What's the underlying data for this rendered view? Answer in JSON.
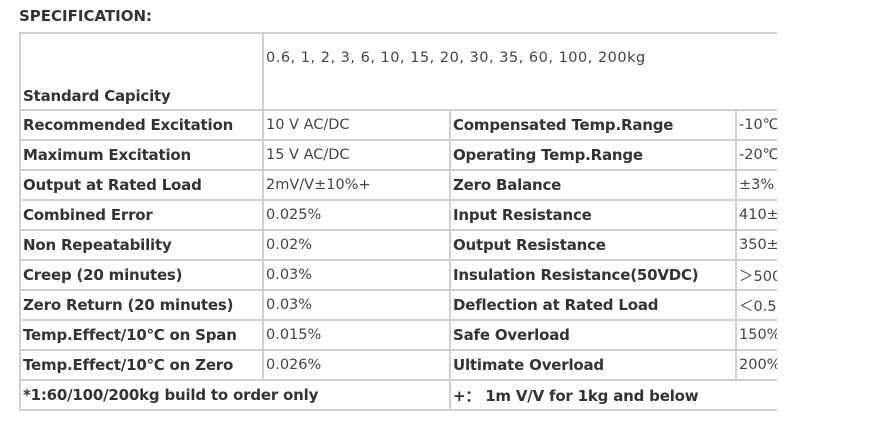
{
  "title": "SPECIFICATION:",
  "capacity": {
    "label": "Standard Capicity",
    "value": "0.6, 1, 2, 3, 6, 10, 15, 20, 30, 35, 60, 100, 200kg"
  },
  "rows": [
    {
      "l1": "Recommended Excitation",
      "v1": "10 V AC/DC",
      "l2": "Compensated Temp.Range",
      "v2": "-10℃"
    },
    {
      "l1": "Maximum Excitation",
      "v1": "15 V AC/DC",
      "l2": "Operating Temp.Range",
      "v2": "-20℃"
    },
    {
      "l1": "Output at Rated Load",
      "v1": "2mV/V±10%+",
      "l2": "Zero Balance",
      "v2": "±3%"
    },
    {
      "l1": "Combined Error",
      "v1": "0.025%",
      "l2": "Input Resistance",
      "v2": "410±"
    },
    {
      "l1": "Non Repeatability",
      "v1": "0.02%",
      "l2": "Output Resistance",
      "v2": "350±"
    },
    {
      "l1": "Creep (20 minutes)",
      "v1": "0.03%",
      "l2": "Insulation Resistance(50VDC)",
      "v2": "＞500"
    },
    {
      "l1": "Zero Return (20 minutes)",
      "v1": "0.03%",
      "l2": "Deflection at Rated Load",
      "v2": "＜0.5"
    },
    {
      "l1": "Temp.Effect/10℃ on Span",
      "v1": "0.015%",
      "l2": "Safe Overload",
      "v2": "150%"
    },
    {
      "l1": "Temp.Effect/10℃ on Zero",
      "v1": "0.026%",
      "l2": "Ultimate Overload",
      "v2": "200%"
    }
  ],
  "footer": {
    "left": "*1:60/100/200kg build to order only",
    "right": "+： 1m V/V for 1kg and below"
  }
}
